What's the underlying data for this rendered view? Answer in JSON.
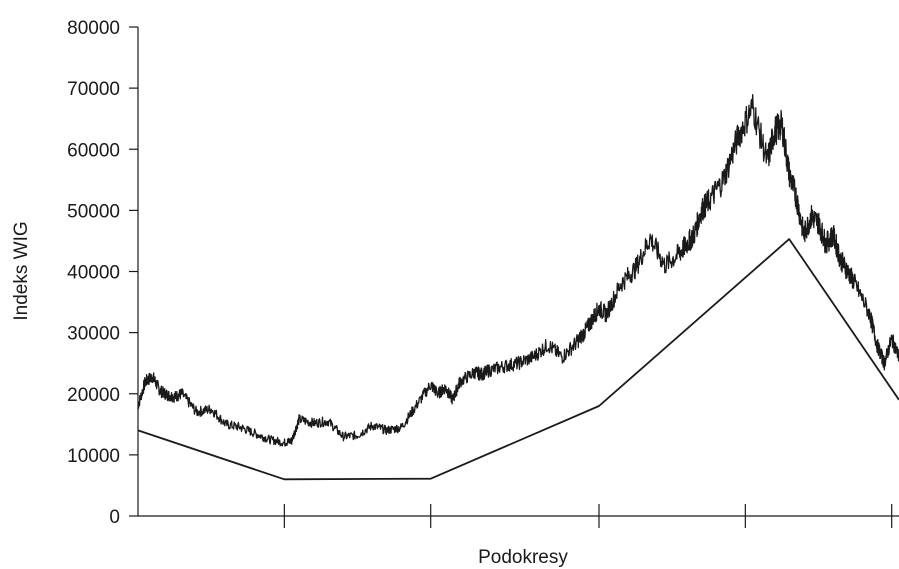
{
  "chart_data": {
    "type": "line",
    "title": "",
    "xlabel": "Podokresy",
    "ylabel": "Indeks WIG",
    "ylim": [
      0,
      80000
    ],
    "yticks": [
      0,
      10000,
      20000,
      30000,
      40000,
      50000,
      60000,
      70000,
      80000
    ],
    "ytick_labels": [
      "0",
      "10000",
      "20000",
      "30000",
      "40000",
      "50000",
      "60000",
      "70000",
      "80000"
    ],
    "x_range": [
      0,
      5.2
    ],
    "xticks": [
      1,
      2,
      3.15,
      4.15,
      5.15
    ],
    "grid": false,
    "legend": "none",
    "series": [
      {
        "style": "noisy",
        "x": [
          0,
          0.05,
          0.1,
          0.15,
          0.2,
          0.25,
          0.3,
          0.4,
          0.5,
          0.6,
          0.7,
          0.8,
          0.9,
          1.0,
          1.05,
          1.1,
          1.2,
          1.3,
          1.4,
          1.5,
          1.6,
          1.7,
          1.8,
          1.9,
          2.0,
          2.05,
          2.1,
          2.15,
          2.2,
          2.3,
          2.35,
          2.4,
          2.5,
          2.6,
          2.7,
          2.8,
          2.9,
          3.0,
          3.05,
          3.1,
          3.15,
          3.2,
          3.3,
          3.4,
          3.5,
          3.6,
          3.7,
          3.75,
          3.8,
          3.85,
          3.9,
          4.0,
          4.1,
          4.2,
          4.3,
          4.35,
          4.4,
          4.45,
          4.5,
          4.55,
          4.6,
          4.65,
          4.7,
          4.75,
          4.8,
          4.85,
          4.9,
          5.0,
          5.05,
          5.1,
          5.15,
          5.2
        ],
        "values": [
          18000,
          22000,
          22800,
          20500,
          19800,
          19500,
          20000,
          17000,
          17500,
          15000,
          14500,
          13500,
          12500,
          12000,
          12300,
          15800,
          15200,
          15500,
          13000,
          13200,
          14800,
          14000,
          14500,
          18000,
          21500,
          20000,
          21000,
          19000,
          22000,
          23500,
          23200,
          23800,
          24500,
          25000,
          26000,
          28000,
          26000,
          28500,
          30000,
          32000,
          34000,
          33000,
          38000,
          40500,
          45500,
          41000,
          43000,
          44500,
          46000,
          50000,
          51500,
          55000,
          62000,
          67000,
          58000,
          63000,
          64000,
          56000,
          52000,
          46000,
          49000,
          48000,
          44500,
          46000,
          42000,
          40000,
          38000,
          33000,
          28000,
          25000,
          29000,
          26000
        ]
      },
      {
        "style": "straight",
        "x": [
          0,
          1.0,
          2.0,
          3.15,
          4.45,
          5.2
        ],
        "values": [
          14000,
          6000,
          6100,
          18000,
          45300,
          19000
        ]
      }
    ]
  }
}
